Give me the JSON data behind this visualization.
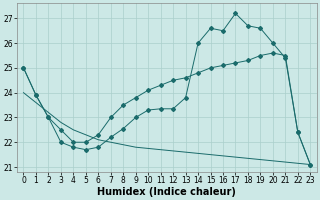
{
  "background_color": "#cce8e6",
  "grid_color": "#aacfcc",
  "line_color": "#1a6b6b",
  "xlabel": "Humidex (Indice chaleur)",
  "xlabel_fontsize": 7,
  "ylim": [
    20.8,
    27.6
  ],
  "xlim": [
    -0.5,
    23.5
  ],
  "yticks": [
    21,
    22,
    23,
    24,
    25,
    26,
    27
  ],
  "xticks": [
    0,
    1,
    2,
    3,
    4,
    5,
    6,
    7,
    8,
    9,
    10,
    11,
    12,
    13,
    14,
    15,
    16,
    17,
    18,
    19,
    20,
    21,
    22,
    23
  ],
  "series1_x": [
    0,
    1,
    2,
    3,
    4,
    5,
    6,
    7,
    8,
    9,
    10,
    11,
    12,
    13,
    14,
    15,
    16,
    17,
    18,
    19,
    20,
    21,
    22,
    23
  ],
  "series1_y": [
    25.0,
    23.9,
    23.0,
    22.0,
    21.8,
    21.7,
    21.8,
    22.2,
    22.55,
    23.0,
    23.3,
    23.35,
    23.35,
    23.8,
    26.0,
    26.6,
    26.5,
    27.2,
    26.7,
    26.6,
    26.0,
    25.4,
    22.4,
    21.1
  ],
  "series2_x": [
    0,
    1,
    2,
    3,
    4,
    5,
    6,
    7,
    8,
    9,
    10,
    11,
    12,
    13,
    14,
    15,
    16,
    17,
    18,
    19,
    20,
    21,
    22,
    23
  ],
  "series2_y": [
    25.0,
    23.9,
    23.0,
    22.5,
    22.0,
    22.0,
    22.3,
    23.0,
    23.5,
    23.8,
    24.1,
    24.3,
    24.5,
    24.6,
    24.8,
    25.0,
    25.1,
    25.2,
    25.3,
    25.5,
    25.6,
    25.5,
    22.4,
    21.1
  ],
  "series3_x": [
    0,
    1,
    2,
    3,
    4,
    5,
    6,
    7,
    8,
    9,
    10,
    11,
    12,
    13,
    14,
    15,
    16,
    17,
    18,
    19,
    20,
    21,
    22,
    23
  ],
  "series3_y": [
    24.0,
    23.6,
    23.2,
    22.8,
    22.5,
    22.3,
    22.1,
    22.0,
    21.9,
    21.8,
    21.75,
    21.7,
    21.65,
    21.6,
    21.55,
    21.5,
    21.45,
    21.4,
    21.35,
    21.3,
    21.25,
    21.2,
    21.15,
    21.1
  ]
}
